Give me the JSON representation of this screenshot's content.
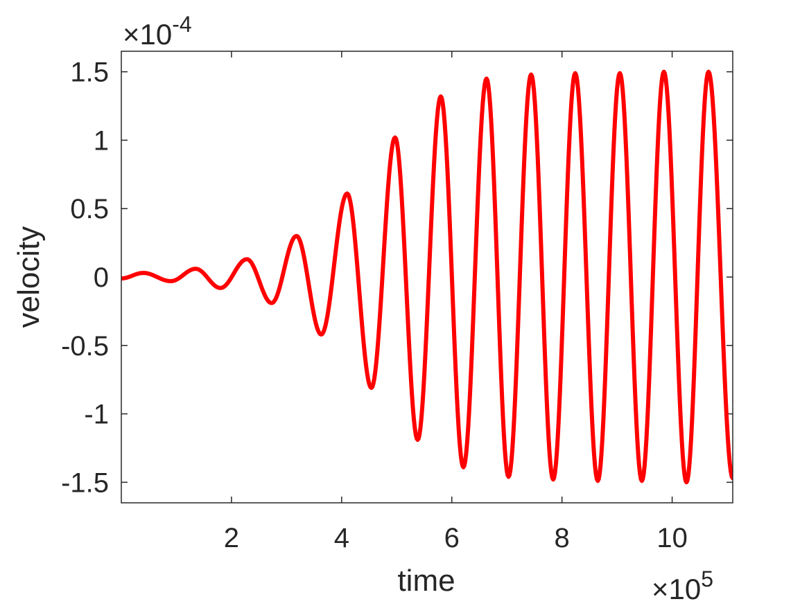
{
  "chart_data": {
    "type": "line",
    "title": "",
    "xlabel": "time",
    "ylabel": "velocity",
    "x_exponent_label": "×10",
    "x_exponent_power": "5",
    "y_exponent_label": "×10",
    "y_exponent_power": "-4",
    "xlim": [
      0.0,
      11.1
    ],
    "ylim": [
      -1.65,
      1.65
    ],
    "x_ticks": [
      2,
      4,
      6,
      8,
      10
    ],
    "x_tick_labels": [
      "2",
      "4",
      "6",
      "8",
      "10"
    ],
    "y_ticks": [
      -1.5,
      -1,
      -0.5,
      0,
      0.5,
      1,
      1.5
    ],
    "y_tick_labels": [
      "-1.5",
      "-1",
      "-0.5",
      "0",
      "0.5",
      "1",
      "1.5"
    ],
    "grid": false,
    "series": [
      {
        "color": "#ff0000",
        "x": [
          0.0,
          0.4,
          0.9,
          1.35,
          1.8,
          2.28,
          2.73,
          3.18,
          3.63,
          4.1,
          4.54,
          4.97,
          5.38,
          5.8,
          6.21,
          6.63,
          7.03,
          7.44,
          7.84,
          8.24,
          8.65,
          9.05,
          9.45,
          9.85,
          10.26,
          10.66,
          11.1
        ],
        "y": [
          -0.01,
          0.03,
          -0.03,
          0.06,
          -0.08,
          0.13,
          -0.19,
          0.3,
          -0.42,
          0.61,
          -0.81,
          1.02,
          -1.19,
          1.32,
          -1.39,
          1.45,
          -1.46,
          1.48,
          -1.48,
          1.49,
          -1.49,
          1.49,
          -1.49,
          1.5,
          -1.5,
          1.5,
          -1.47
        ]
      }
    ]
  }
}
